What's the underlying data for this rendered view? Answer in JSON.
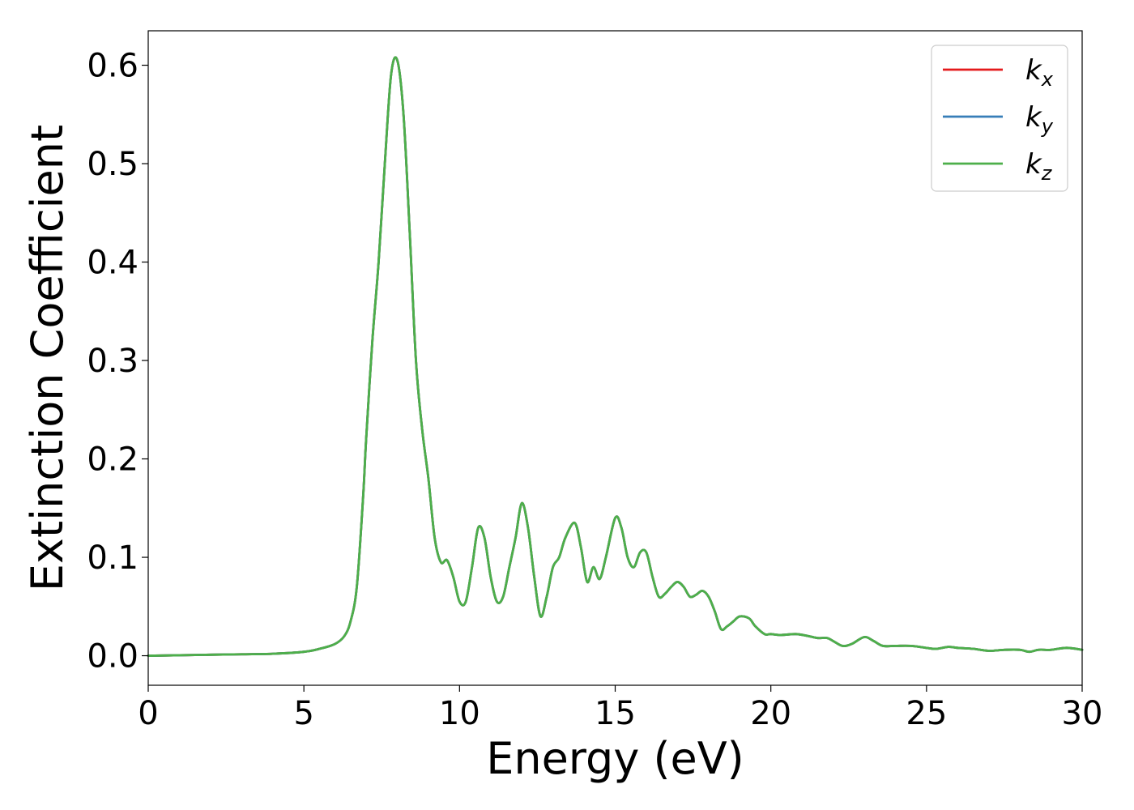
{
  "chart_data": {
    "type": "line",
    "title": "",
    "xlabel": "Energy (eV)",
    "ylabel": "Extinction Coefficient",
    "xlim": [
      0,
      30
    ],
    "ylim": [
      -0.03,
      0.635
    ],
    "xticks": [
      0,
      5,
      10,
      15,
      20,
      25,
      30
    ],
    "xtick_labels": [
      "0",
      "5",
      "10",
      "15",
      "20",
      "25",
      "30"
    ],
    "yticks": [
      0.0,
      0.1,
      0.2,
      0.3,
      0.4,
      0.5,
      0.6
    ],
    "ytick_labels": [
      "0.0",
      "0.1",
      "0.2",
      "0.3",
      "0.4",
      "0.5",
      "0.6"
    ],
    "grid": false,
    "legend_position": "top-right",
    "x": [
      0,
      1,
      2,
      3,
      4,
      5,
      5.5,
      6,
      6.3,
      6.5,
      6.7,
      6.9,
      7.0,
      7.2,
      7.4,
      7.6,
      7.8,
      8.0,
      8.2,
      8.4,
      8.6,
      8.8,
      9.0,
      9.2,
      9.4,
      9.6,
      9.8,
      10.0,
      10.2,
      10.4,
      10.6,
      10.8,
      11.0,
      11.2,
      11.4,
      11.6,
      11.8,
      12.0,
      12.2,
      12.4,
      12.6,
      12.8,
      13.0,
      13.2,
      13.4,
      13.7,
      13.9,
      14.1,
      14.3,
      14.5,
      14.7,
      15.0,
      15.2,
      15.4,
      15.6,
      15.8,
      16.0,
      16.2,
      16.4,
      16.6,
      16.8,
      17.0,
      17.2,
      17.4,
      17.6,
      17.8,
      18.0,
      18.2,
      18.4,
      18.6,
      18.8,
      19.0,
      19.3,
      19.5,
      19.8,
      20.0,
      20.3,
      20.8,
      21.2,
      21.5,
      21.8,
      22.0,
      22.3,
      22.6,
      23.0,
      23.3,
      23.6,
      24.0,
      24.5,
      25.0,
      25.3,
      25.7,
      26.0,
      26.5,
      27.0,
      27.5,
      28.0,
      28.3,
      28.6,
      29.0,
      29.5,
      30.0
    ],
    "series": [
      {
        "name": "k_x",
        "color": "#e41a1c",
        "values": [
          0.0,
          0.0005,
          0.001,
          0.0015,
          0.002,
          0.004,
          0.007,
          0.012,
          0.02,
          0.035,
          0.07,
          0.16,
          0.22,
          0.32,
          0.4,
          0.5,
          0.59,
          0.605,
          0.55,
          0.43,
          0.3,
          0.23,
          0.18,
          0.12,
          0.095,
          0.097,
          0.08,
          0.055,
          0.055,
          0.09,
          0.13,
          0.12,
          0.08,
          0.055,
          0.06,
          0.09,
          0.12,
          0.155,
          0.13,
          0.08,
          0.04,
          0.06,
          0.09,
          0.1,
          0.12,
          0.135,
          0.11,
          0.075,
          0.09,
          0.078,
          0.1,
          0.14,
          0.13,
          0.1,
          0.09,
          0.105,
          0.105,
          0.08,
          0.06,
          0.063,
          0.07,
          0.075,
          0.07,
          0.06,
          0.062,
          0.066,
          0.06,
          0.045,
          0.027,
          0.03,
          0.035,
          0.04,
          0.038,
          0.03,
          0.022,
          0.022,
          0.021,
          0.022,
          0.02,
          0.018,
          0.018,
          0.015,
          0.01,
          0.012,
          0.019,
          0.015,
          0.01,
          0.01,
          0.01,
          0.008,
          0.007,
          0.009,
          0.008,
          0.007,
          0.005,
          0.006,
          0.006,
          0.004,
          0.006,
          0.006,
          0.008,
          0.006
        ]
      },
      {
        "name": "k_y",
        "color": "#377eb8",
        "values": [
          0.0,
          0.0005,
          0.001,
          0.0015,
          0.002,
          0.004,
          0.007,
          0.012,
          0.02,
          0.035,
          0.07,
          0.16,
          0.22,
          0.32,
          0.4,
          0.5,
          0.59,
          0.605,
          0.55,
          0.43,
          0.3,
          0.23,
          0.18,
          0.12,
          0.095,
          0.097,
          0.08,
          0.055,
          0.055,
          0.09,
          0.13,
          0.12,
          0.08,
          0.055,
          0.06,
          0.09,
          0.12,
          0.155,
          0.13,
          0.08,
          0.04,
          0.06,
          0.09,
          0.1,
          0.12,
          0.135,
          0.11,
          0.075,
          0.09,
          0.078,
          0.1,
          0.14,
          0.13,
          0.1,
          0.09,
          0.105,
          0.105,
          0.08,
          0.06,
          0.063,
          0.07,
          0.075,
          0.07,
          0.06,
          0.062,
          0.066,
          0.06,
          0.045,
          0.027,
          0.03,
          0.035,
          0.04,
          0.038,
          0.03,
          0.022,
          0.022,
          0.021,
          0.022,
          0.02,
          0.018,
          0.018,
          0.015,
          0.01,
          0.012,
          0.019,
          0.015,
          0.01,
          0.01,
          0.01,
          0.008,
          0.007,
          0.009,
          0.008,
          0.007,
          0.005,
          0.006,
          0.006,
          0.004,
          0.006,
          0.006,
          0.008,
          0.006
        ]
      },
      {
        "name": "k_z",
        "color": "#4daf4a",
        "values": [
          0.0,
          0.0005,
          0.001,
          0.0015,
          0.002,
          0.004,
          0.007,
          0.012,
          0.02,
          0.035,
          0.07,
          0.16,
          0.22,
          0.32,
          0.4,
          0.5,
          0.59,
          0.605,
          0.55,
          0.43,
          0.3,
          0.23,
          0.18,
          0.12,
          0.095,
          0.097,
          0.08,
          0.055,
          0.055,
          0.09,
          0.13,
          0.12,
          0.08,
          0.055,
          0.06,
          0.09,
          0.12,
          0.155,
          0.13,
          0.08,
          0.04,
          0.06,
          0.09,
          0.1,
          0.12,
          0.135,
          0.11,
          0.075,
          0.09,
          0.078,
          0.1,
          0.14,
          0.13,
          0.1,
          0.09,
          0.105,
          0.105,
          0.08,
          0.06,
          0.063,
          0.07,
          0.075,
          0.07,
          0.06,
          0.062,
          0.066,
          0.06,
          0.045,
          0.027,
          0.03,
          0.035,
          0.04,
          0.038,
          0.03,
          0.022,
          0.022,
          0.021,
          0.022,
          0.02,
          0.018,
          0.018,
          0.015,
          0.01,
          0.012,
          0.019,
          0.015,
          0.01,
          0.01,
          0.01,
          0.008,
          0.007,
          0.009,
          0.008,
          0.007,
          0.005,
          0.006,
          0.006,
          0.004,
          0.006,
          0.006,
          0.008,
          0.006
        ]
      }
    ],
    "legend": [
      {
        "base": "k",
        "sub": "x",
        "color": "#e41a1c"
      },
      {
        "base": "k",
        "sub": "y",
        "color": "#377eb8"
      },
      {
        "base": "k",
        "sub": "z",
        "color": "#4daf4a"
      }
    ]
  }
}
